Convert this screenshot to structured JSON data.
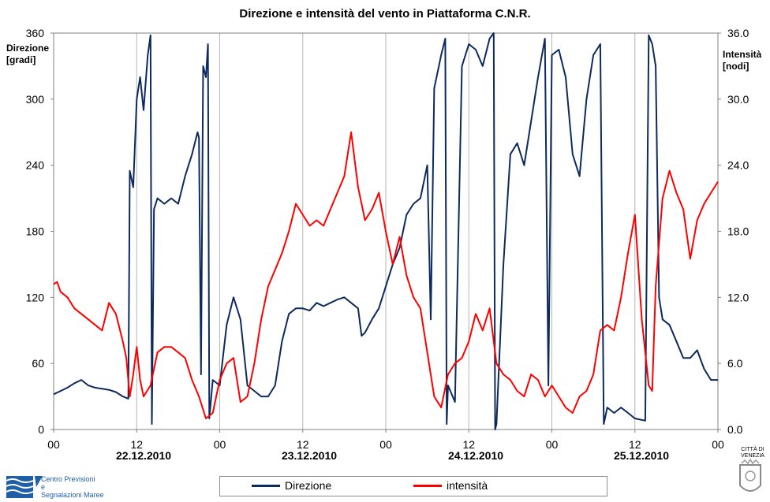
{
  "title": "Direzione e intensità del vento in Piattaforma C.N.R.",
  "left_axis_title": [
    "Direzione",
    "[gradi]"
  ],
  "right_axis_title": [
    "Intensità",
    "[nodi]"
  ],
  "legend": {
    "series1": "Direzione",
    "series2": "intensità"
  },
  "dates": [
    "22.12.2010",
    "23.12.2010",
    "24.12.2010",
    "25.12.2010"
  ],
  "logo_left_text": [
    "Centro Previsioni",
    "e",
    "Segnalazioni Maree"
  ],
  "logo_right_text": [
    "CITTÀ DI",
    "VENEZIA"
  ],
  "colors": {
    "direzione": "#0d2a5e",
    "intensita": "#ff0000"
  },
  "chart_data": {
    "type": "line",
    "title": "Direzione e intensità del vento in Piattaforma C.N.R.",
    "xlabel": "",
    "x_unit": "hours from 22.12.2010 00",
    "xlim": [
      0,
      96
    ],
    "x_ticks": [
      0,
      12,
      24,
      36,
      48,
      60,
      72,
      84,
      96
    ],
    "x_tick_labels": [
      "00",
      "12",
      "00",
      "12",
      "00",
      "12",
      "00",
      "12",
      "00"
    ],
    "y_left": {
      "label": "Direzione [gradi]",
      "lim": [
        0,
        360
      ],
      "ticks": [
        0,
        60,
        120,
        180,
        240,
        300,
        360
      ]
    },
    "y_right": {
      "label": "Intensità [nodi]",
      "lim": [
        0,
        36
      ],
      "ticks": [
        "0.0",
        "6.0",
        "12.0",
        "18.0",
        "24.0",
        "30.0",
        "36.0"
      ]
    },
    "grid": "vertical",
    "legend": "bottom",
    "series": [
      {
        "name": "Direzione",
        "axis": "left",
        "color": "#0d2a5e",
        "points": [
          [
            0,
            32
          ],
          [
            1,
            35
          ],
          [
            2,
            38
          ],
          [
            3,
            42
          ],
          [
            4,
            45
          ],
          [
            5,
            40
          ],
          [
            6,
            38
          ],
          [
            7,
            37
          ],
          [
            8,
            36
          ],
          [
            9,
            34
          ],
          [
            10,
            30
          ],
          [
            10.8,
            28
          ],
          [
            11,
            235
          ],
          [
            11.5,
            220
          ],
          [
            12,
            300
          ],
          [
            12.5,
            320
          ],
          [
            13,
            290
          ],
          [
            13.6,
            340
          ],
          [
            14,
            358
          ],
          [
            14.2,
            5
          ],
          [
            14.5,
            200
          ],
          [
            15,
            210
          ],
          [
            16,
            205
          ],
          [
            17,
            210
          ],
          [
            18,
            205
          ],
          [
            19,
            230
          ],
          [
            20,
            250
          ],
          [
            20.8,
            270
          ],
          [
            21,
            265
          ],
          [
            21.3,
            50
          ],
          [
            21.6,
            330
          ],
          [
            22,
            320
          ],
          [
            22.3,
            350
          ],
          [
            22.5,
            10
          ],
          [
            23,
            45
          ],
          [
            24,
            40
          ],
          [
            25,
            95
          ],
          [
            26,
            120
          ],
          [
            27,
            100
          ],
          [
            28,
            40
          ],
          [
            29,
            35
          ],
          [
            30,
            30
          ],
          [
            31,
            30
          ],
          [
            32,
            40
          ],
          [
            33,
            80
          ],
          [
            34,
            105
          ],
          [
            35,
            110
          ],
          [
            36,
            110
          ],
          [
            37,
            108
          ],
          [
            38,
            115
          ],
          [
            39,
            112
          ],
          [
            40,
            115
          ],
          [
            41,
            118
          ],
          [
            42,
            120
          ],
          [
            43,
            115
          ],
          [
            44,
            110
          ],
          [
            44.5,
            85
          ],
          [
            45,
            88
          ],
          [
            46,
            100
          ],
          [
            47,
            110
          ],
          [
            48,
            130
          ],
          [
            49,
            150
          ],
          [
            50,
            165
          ],
          [
            51,
            195
          ],
          [
            52,
            205
          ],
          [
            53,
            210
          ],
          [
            54,
            240
          ],
          [
            54.5,
            100
          ],
          [
            55,
            310
          ],
          [
            56,
            340
          ],
          [
            56.6,
            355
          ],
          [
            56.8,
            5
          ],
          [
            57,
            40
          ],
          [
            58,
            25
          ],
          [
            59,
            330
          ],
          [
            60,
            350
          ],
          [
            61,
            345
          ],
          [
            62,
            330
          ],
          [
            63,
            355
          ],
          [
            63.6,
            360
          ],
          [
            63.8,
            0
          ],
          [
            64,
            5
          ],
          [
            65,
            150
          ],
          [
            66,
            250
          ],
          [
            67,
            260
          ],
          [
            68,
            240
          ],
          [
            69,
            280
          ],
          [
            70,
            320
          ],
          [
            71,
            355
          ],
          [
            71.5,
            40
          ],
          [
            72,
            340
          ],
          [
            73,
            345
          ],
          [
            74,
            320
          ],
          [
            75,
            250
          ],
          [
            76,
            230
          ],
          [
            77,
            300
          ],
          [
            78,
            340
          ],
          [
            79,
            350
          ],
          [
            79.5,
            5
          ],
          [
            80,
            20
          ],
          [
            81,
            15
          ],
          [
            82,
            20
          ],
          [
            83,
            15
          ],
          [
            84,
            10
          ],
          [
            85.5,
            8
          ],
          [
            86,
            358
          ],
          [
            86.5,
            350
          ],
          [
            87,
            330
          ],
          [
            87.5,
            120
          ],
          [
            88,
            100
          ],
          [
            89,
            95
          ],
          [
            90,
            80
          ],
          [
            91,
            65
          ],
          [
            92,
            65
          ],
          [
            93,
            72
          ],
          [
            94,
            55
          ],
          [
            95,
            45
          ],
          [
            96,
            45
          ]
        ]
      },
      {
        "name": "intensità",
        "axis": "right",
        "color": "#ff0000",
        "points": [
          [
            0,
            13.2
          ],
          [
            0.5,
            13.4
          ],
          [
            1,
            12.5
          ],
          [
            2,
            12.0
          ],
          [
            3,
            11.0
          ],
          [
            4,
            10.5
          ],
          [
            5,
            10.0
          ],
          [
            6,
            9.5
          ],
          [
            7,
            9.0
          ],
          [
            8,
            11.5
          ],
          [
            9,
            10.5
          ],
          [
            10,
            8.0
          ],
          [
            10.5,
            6.5
          ],
          [
            11,
            3.0
          ],
          [
            11.5,
            5.0
          ],
          [
            12,
            7.5
          ],
          [
            12.5,
            4.5
          ],
          [
            13,
            3.0
          ],
          [
            14,
            4.0
          ],
          [
            15,
            7.0
          ],
          [
            16,
            7.5
          ],
          [
            17,
            7.5
          ],
          [
            18,
            7.0
          ],
          [
            19,
            6.5
          ],
          [
            20,
            4.5
          ],
          [
            21,
            3.0
          ],
          [
            22,
            1.0
          ],
          [
            23,
            1.5
          ],
          [
            24,
            4.5
          ],
          [
            25,
            6.0
          ],
          [
            26,
            6.5
          ],
          [
            27,
            2.5
          ],
          [
            28,
            3.0
          ],
          [
            29,
            6.0
          ],
          [
            30,
            10.0
          ],
          [
            31,
            13.0
          ],
          [
            32,
            14.5
          ],
          [
            33,
            16.0
          ],
          [
            34,
            18.0
          ],
          [
            35,
            20.5
          ],
          [
            36,
            19.5
          ],
          [
            37,
            18.5
          ],
          [
            38,
            19.0
          ],
          [
            39,
            18.5
          ],
          [
            40,
            20.0
          ],
          [
            41,
            21.5
          ],
          [
            42,
            23.0
          ],
          [
            43,
            27.0
          ],
          [
            44,
            22.0
          ],
          [
            45,
            19.0
          ],
          [
            46,
            20.0
          ],
          [
            47,
            21.5
          ],
          [
            48,
            18.0
          ],
          [
            49,
            15.0
          ],
          [
            50,
            17.5
          ],
          [
            51,
            14.0
          ],
          [
            52,
            12.0
          ],
          [
            53,
            11.0
          ],
          [
            54,
            7.0
          ],
          [
            55,
            3.0
          ],
          [
            56,
            2.0
          ],
          [
            57,
            5.0
          ],
          [
            58,
            6.0
          ],
          [
            59,
            6.5
          ],
          [
            60,
            8.0
          ],
          [
            61,
            10.5
          ],
          [
            62,
            9.0
          ],
          [
            63,
            11.0
          ],
          [
            64,
            6.0
          ],
          [
            65,
            5.0
          ],
          [
            66,
            4.5
          ],
          [
            67,
            3.5
          ],
          [
            68,
            3.0
          ],
          [
            69,
            5.0
          ],
          [
            70,
            4.5
          ],
          [
            71,
            3.0
          ],
          [
            72,
            4.0
          ],
          [
            73,
            3.0
          ],
          [
            74,
            2.0
          ],
          [
            75,
            1.5
          ],
          [
            76,
            3.0
          ],
          [
            77,
            3.5
          ],
          [
            78,
            5.0
          ],
          [
            79,
            9.0
          ],
          [
            80,
            9.5
          ],
          [
            81,
            9.0
          ],
          [
            82,
            12.0
          ],
          [
            83,
            16.0
          ],
          [
            84,
            19.5
          ],
          [
            85,
            10.0
          ],
          [
            86,
            4.0
          ],
          [
            86.5,
            3.5
          ],
          [
            87,
            13.0
          ],
          [
            88,
            21.0
          ],
          [
            89,
            23.5
          ],
          [
            90,
            21.5
          ],
          [
            91,
            20.0
          ],
          [
            92,
            15.5
          ],
          [
            93,
            19.0
          ],
          [
            94,
            20.5
          ],
          [
            95,
            21.5
          ],
          [
            96,
            22.5
          ]
        ]
      }
    ]
  }
}
